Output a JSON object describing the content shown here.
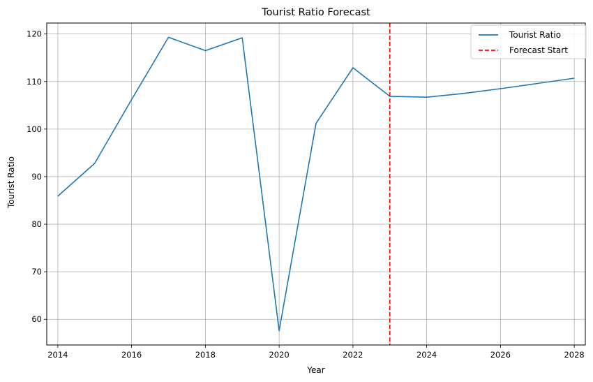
{
  "chart_data": {
    "type": "line",
    "title": "Tourist Ratio Forecast",
    "xlabel": "Year",
    "ylabel": "Tourist Ratio",
    "xlim": [
      2013.7,
      2028.3
    ],
    "ylim": [
      54.6,
      122.3
    ],
    "xticks": [
      2014,
      2016,
      2018,
      2020,
      2022,
      2024,
      2026,
      2028
    ],
    "yticks": [
      60,
      70,
      80,
      90,
      100,
      110,
      120
    ],
    "grid": true,
    "legend_position": "top-right",
    "series": [
      {
        "name": "Tourist Ratio",
        "color": "#1f77b4",
        "x": [
          2014,
          2015,
          2016,
          2017,
          2018,
          2019,
          2020,
          2021,
          2022,
          2023,
          2024,
          2025,
          2026,
          2027,
          2028
        ],
        "y": [
          85.9,
          92.8,
          106.2,
          119.3,
          116.5,
          119.2,
          57.6,
          101.2,
          112.9,
          106.9,
          106.7,
          107.5,
          108.5,
          109.6,
          110.7
        ]
      }
    ],
    "annotations": [
      {
        "type": "vline",
        "name": "Forecast Start",
        "x": 2023,
        "color": "#ff0000",
        "style": "dashed"
      }
    ]
  }
}
